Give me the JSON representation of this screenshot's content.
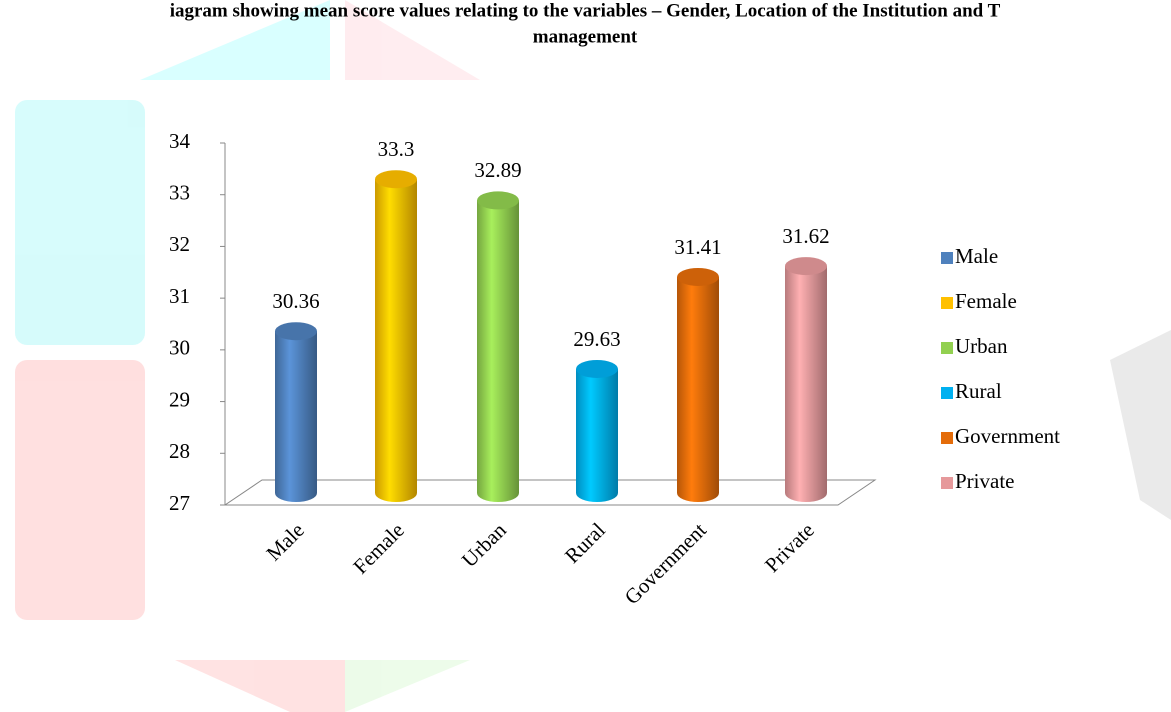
{
  "chart_data": {
    "type": "cylinder-bar",
    "title": [
      "iagram showing mean score values relating to the variables – Gender, Location of the Institution and T",
      "management"
    ],
    "categories": [
      "Male",
      "Female",
      "Urban",
      "Rural",
      "Government",
      "Private"
    ],
    "values": [
      30.36,
      33.3,
      32.89,
      29.63,
      31.41,
      31.62
    ],
    "colors": [
      "#4f81bd",
      "#ffc000",
      "#92d050",
      "#00b0f0",
      "#e46c0a",
      "#e6999b"
    ],
    "ylim": [
      27,
      34
    ],
    "yticks": [
      27,
      28,
      29,
      30,
      31,
      32,
      33,
      34
    ],
    "legend": "right"
  }
}
